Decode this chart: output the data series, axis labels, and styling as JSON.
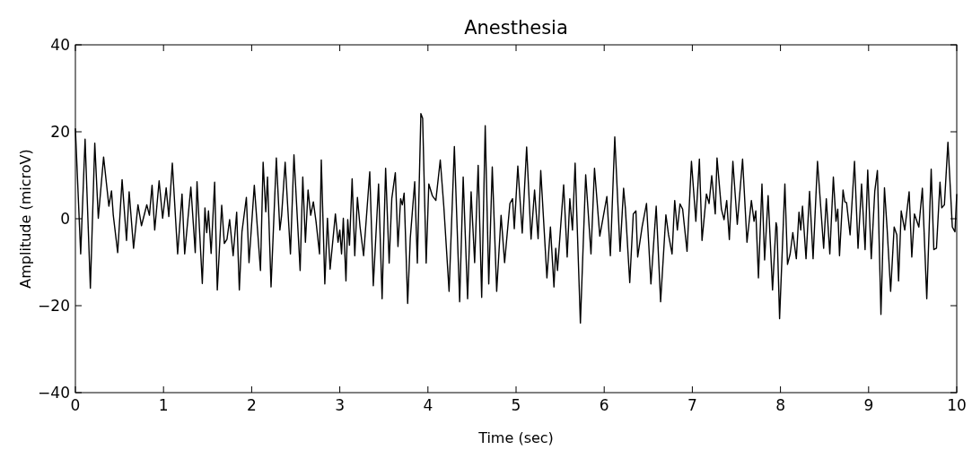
{
  "chart_data": {
    "type": "line",
    "title": "Anesthesia",
    "xlabel": "Time (sec)",
    "ylabel": "Amplitude (microV)",
    "xlim": [
      0,
      10
    ],
    "ylim": [
      -40,
      40
    ],
    "xticks": [
      0,
      1,
      2,
      3,
      4,
      5,
      6,
      7,
      8,
      9,
      10
    ],
    "yticks": [
      -40,
      -20,
      0,
      20,
      40
    ],
    "grid": false,
    "marker": "none",
    "line_style": "solid",
    "series": [
      {
        "color": "#000000",
        "x": [
          0,
          0.06,
          0.11,
          0.17,
          0.22,
          0.26,
          0.32,
          0.38,
          0.41,
          0.43,
          0.48,
          0.53,
          0.58,
          0.61,
          0.66,
          0.71,
          0.75,
          0.81,
          0.84,
          0.87,
          0.9,
          0.95,
          0.99,
          1.03,
          1.06,
          1.1,
          1.16,
          1.21,
          1.24,
          1.31,
          1.36,
          1.38,
          1.44,
          1.47,
          1.49,
          1.51,
          1.54,
          1.58,
          1.61,
          1.66,
          1.69,
          1.72,
          1.75,
          1.79,
          1.83,
          1.86,
          1.89,
          1.94,
          1.97,
          2.03,
          2.1,
          2.13,
          2.16,
          2.18,
          2.22,
          2.28,
          2.32,
          2.34,
          2.38,
          2.44,
          2.48,
          2.55,
          2.58,
          2.61,
          2.64,
          2.67,
          2.7,
          2.73,
          2.77,
          2.79,
          2.83,
          2.86,
          2.89,
          2.95,
          2.98,
          3,
          3.02,
          3.04,
          3.07,
          3.09,
          3.11,
          3.14,
          3.17,
          3.2,
          3.23,
          3.27,
          3.34,
          3.38,
          3.44,
          3.48,
          3.52,
          3.56,
          3.59,
          3.63,
          3.66,
          3.69,
          3.71,
          3.73,
          3.77,
          3.8,
          3.85,
          3.88,
          3.92,
          3.94,
          3.98,
          4.01,
          4.05,
          4.09,
          4.14,
          4.18,
          4.24,
          4.3,
          4.36,
          4.4,
          4.45,
          4.49,
          4.53,
          4.57,
          4.61,
          4.65,
          4.69,
          4.73,
          4.78,
          4.83,
          4.87,
          4.93,
          4.96,
          4.98,
          5.02,
          5.07,
          5.12,
          5.17,
          5.21,
          5.25,
          5.28,
          5.35,
          5.39,
          5.43,
          5.45,
          5.47,
          5.54,
          5.58,
          5.61,
          5.64,
          5.67,
          5.73,
          5.79,
          5.85,
          5.89,
          5.95,
          6.03,
          6.07,
          6.12,
          6.18,
          6.22,
          6.24,
          6.29,
          6.33,
          6.36,
          6.38,
          6.43,
          6.48,
          6.53,
          6.59,
          6.64,
          6.7,
          6.73,
          6.77,
          6.8,
          6.83,
          6.86,
          6.89,
          6.94,
          6.99,
          7.04,
          7.08,
          7.11,
          7.16,
          7.19,
          7.22,
          7.26,
          7.28,
          7.33,
          7.36,
          7.39,
          7.42,
          7.46,
          7.51,
          7.57,
          7.62,
          7.67,
          7.7,
          7.72,
          7.75,
          7.79,
          7.82,
          7.86,
          7.91,
          7.95,
          7.96,
          7.99,
          8.05,
          8.08,
          8.11,
          8.14,
          8.18,
          8.21,
          8.23,
          8.25,
          8.29,
          8.33,
          8.37,
          8.42,
          8.49,
          8.52,
          8.56,
          8.6,
          8.63,
          8.65,
          8.67,
          8.71,
          8.73,
          8.75,
          8.79,
          8.84,
          8.88,
          8.92,
          8.96,
          8.99,
          9.03,
          9.07,
          9.1,
          9.14,
          9.18,
          9.21,
          9.25,
          9.29,
          9.32,
          9.34,
          9.37,
          9.41,
          9.46,
          9.49,
          9.52,
          9.57,
          9.61,
          9.66,
          9.71,
          9.74,
          9.77,
          9.81,
          9.83,
          9.86,
          9.9,
          9.95,
          9.98,
          10
        ],
        "values": [
          20.7,
          -8.1,
          18.3,
          -16,
          17.4,
          0.1,
          14.2,
          2.9,
          6.4,
          0.8,
          -7.8,
          9,
          -5,
          6.2,
          -6.8,
          3.2,
          -1.6,
          3.2,
          0.8,
          7.7,
          -2.6,
          8.7,
          0.1,
          7.1,
          0.5,
          12.8,
          -8.1,
          5.7,
          -8.1,
          7.3,
          -7.8,
          8.5,
          -14.9,
          2.5,
          -3.2,
          1.8,
          -8,
          8.4,
          -16.4,
          3.1,
          -5.7,
          -4.7,
          -0.2,
          -8.5,
          1.5,
          -16.4,
          -3,
          4.9,
          -10.1,
          7.7,
          -11.9,
          13,
          1.6,
          9.6,
          -15.7,
          14,
          -2.6,
          0.8,
          13,
          -8.1,
          14.7,
          -11.9,
          9.6,
          -5.4,
          6.6,
          0.8,
          3.9,
          -0.6,
          -8.1,
          13.5,
          -15,
          0.1,
          -11.6,
          1.1,
          -5.4,
          -2.6,
          -8.1,
          0.1,
          -14.3,
          -0.2,
          -6.1,
          9.2,
          -8.5,
          4.9,
          -1.9,
          -8.5,
          10.8,
          -15.4,
          8,
          -18.4,
          11.6,
          -10.2,
          4.6,
          10.6,
          -6.4,
          4.6,
          3.2,
          5.9,
          -19.5,
          -4.4,
          8.5,
          -10.2,
          24.2,
          23.1,
          -10.2,
          8,
          5.3,
          4.2,
          13.5,
          2.9,
          -16.7,
          16.6,
          -19.1,
          9.6,
          -18.4,
          6.2,
          -10.1,
          12.3,
          -18.1,
          21.4,
          -15,
          11.9,
          -16.7,
          0.8,
          -10.1,
          3.5,
          4.6,
          -2.3,
          12.1,
          -3.3,
          16.5,
          -4.7,
          6.6,
          -4.6,
          11.1,
          -13.6,
          -1.9,
          -15.7,
          -6.8,
          -11.9,
          7.8,
          -8.8,
          4.6,
          -2.6,
          12.8,
          -24,
          10.1,
          -8.1,
          11.6,
          -4,
          5.1,
          -8.5,
          18.8,
          -7.5,
          7,
          2.5,
          -14.7,
          1.1,
          1.8,
          -8.8,
          -1.9,
          3.5,
          -15,
          2.9,
          -19.1,
          0.9,
          -3.7,
          -8.1,
          4.2,
          -2.6,
          3.4,
          2.2,
          -7.5,
          13.2,
          -0.6,
          13.7,
          -5,
          5.7,
          3.5,
          9.9,
          1.1,
          14,
          2.2,
          -0.2,
          4.2,
          -4.8,
          13.2,
          -1.3,
          13.7,
          -5.4,
          4.2,
          -0.6,
          1.8,
          -13.6,
          8,
          -9.5,
          5.3,
          -16.4,
          -0.9,
          -1.9,
          -23,
          8,
          -10.5,
          -8.1,
          -3.2,
          -9.2,
          1.5,
          -2.6,
          2.9,
          -9.2,
          6.3,
          -9.2,
          13.2,
          -6.8,
          4.6,
          -8.1,
          9.6,
          -0.6,
          2.2,
          -8.5,
          6.6,
          3.9,
          3.7,
          -3.7,
          13.2,
          -6.8,
          8,
          -7.1,
          11.2,
          -9.2,
          6.3,
          11.1,
          -22,
          7.1,
          -2.3,
          -16.7,
          -1.9,
          -3.7,
          -14.3,
          1.8,
          -2.6,
          6.2,
          -8.8,
          1.1,
          -1.9,
          7,
          -18.4,
          11.4,
          -7.1,
          -6.8,
          8.4,
          2.5,
          3.2,
          17.6,
          -1.9,
          -3,
          5.6
        ]
      }
    ]
  }
}
